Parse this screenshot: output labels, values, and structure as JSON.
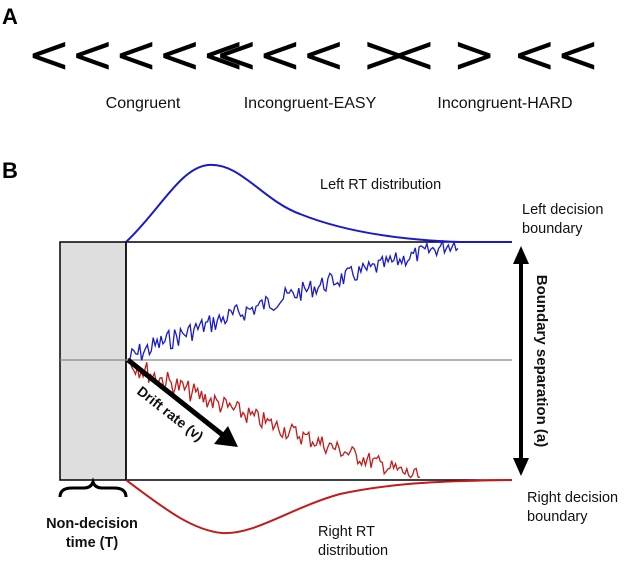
{
  "panel_a": {
    "letter": "A",
    "conditions": [
      {
        "stimulus": "<<<<<",
        "label": "Congruent"
      },
      {
        "stimulus": "<<< >",
        "label": "Incongruent-EASY"
      },
      {
        "stimulus": "< > <<",
        "label": "Incongruent-HARD"
      }
    ]
  },
  "panel_b": {
    "letter": "B",
    "left_rt_label": "Left RT distribution",
    "left_boundary_label": [
      "Left decision",
      "boundary"
    ],
    "right_boundary_label": [
      "Right decision",
      "boundary"
    ],
    "right_rt_label": [
      "Right RT",
      "distribution"
    ],
    "boundary_separation_label": "Boundary separation (a)",
    "drift_rate_label": "Drift rate (v)",
    "non_decision_label": [
      "Non-decision",
      "time (T)"
    ],
    "colors": {
      "left": "#1a1acc",
      "right": "#c41a1a",
      "box_fill": "#dedede",
      "midline": "#888888"
    }
  }
}
